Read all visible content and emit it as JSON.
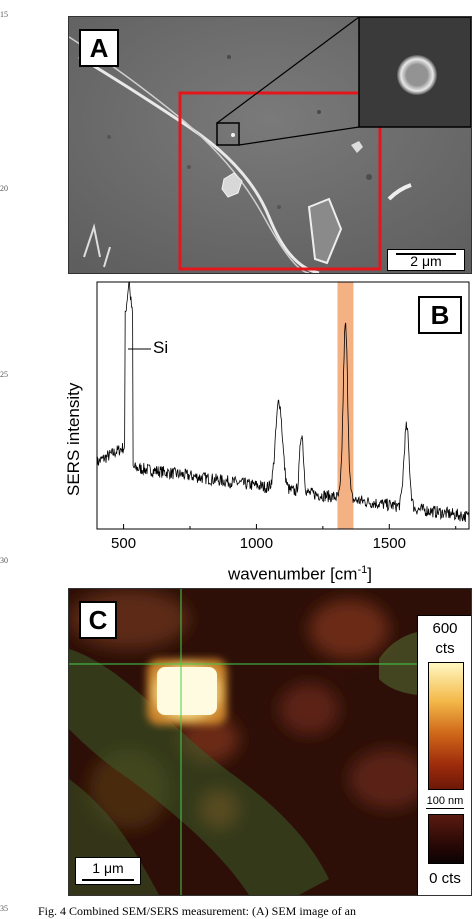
{
  "line_numbers": [
    "15",
    "20",
    "25",
    "30",
    "35"
  ],
  "panel_a": {
    "label": "A",
    "scalebar": "2 μm"
  },
  "panel_b": {
    "label": "B",
    "peak_label": "Si",
    "ylabel": "SERS intensity",
    "xlabel": "wavenumber [cm",
    "xlabel_sup": "-1",
    "xlabel_end": "]",
    "highlight_color": "#f4b183"
  },
  "chart_data": {
    "type": "line",
    "title": "",
    "xlabel": "wavenumber [cm-1]",
    "ylabel": "SERS intensity",
    "xlim": [
      400,
      1800
    ],
    "x_ticks": [
      "500",
      "1000",
      "1500"
    ],
    "highlight_band": [
      1305,
      1365
    ],
    "peaks": [
      {
        "x": 520,
        "y": 1.0
      },
      {
        "x": 1085,
        "y": 0.42
      },
      {
        "x": 1170,
        "y": 0.3
      },
      {
        "x": 1335,
        "y": 0.75
      },
      {
        "x": 1565,
        "y": 0.36
      }
    ],
    "baseline_start": 0.27,
    "baseline_end": 0.05
  },
  "panel_c": {
    "label": "C",
    "scalebar": "1 μm",
    "colorbar_max": "600",
    "colorbar_unit": "cts",
    "colorbar_mid": "100 nm",
    "colorbar_min": "0 cts"
  },
  "caption": "Fig. 4 Combined SEM/SERS measurement: (A) SEM image of an"
}
